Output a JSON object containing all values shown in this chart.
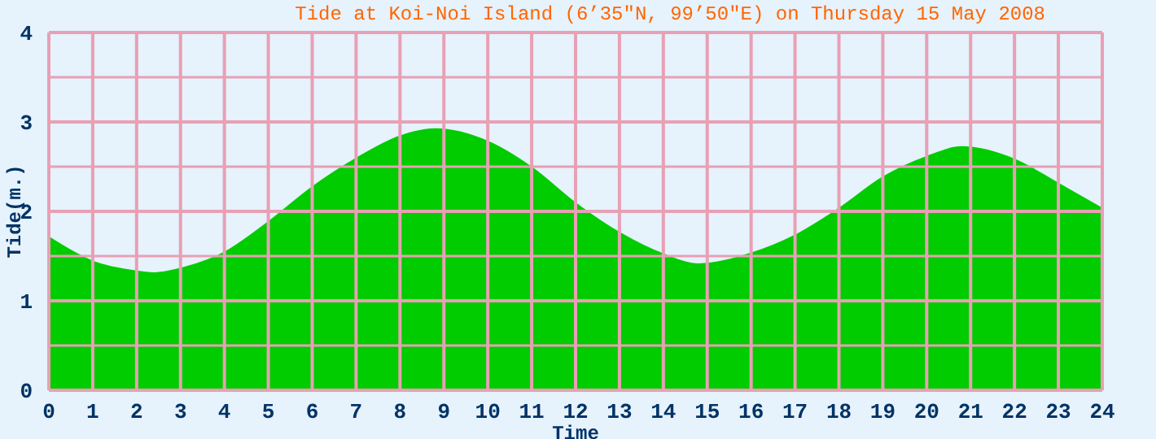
{
  "chart_data": {
    "type": "area",
    "title": "Tide at Koi-Noi Island (6’35\"N, 99’50\"E) on Thursday 15 May 2008",
    "xlabel": "Time",
    "ylabel": "Tide(m.)",
    "x": [
      0,
      1,
      2,
      2.4,
      3,
      4,
      5,
      6,
      7,
      8,
      8.8,
      10,
      11,
      12,
      13,
      14,
      14.8,
      16,
      17,
      18,
      19,
      20,
      20.8,
      22,
      23,
      24
    ],
    "series": [
      {
        "color": "#00cc00",
        "values": [
          1.71,
          1.44,
          1.33,
          1.31,
          1.36,
          1.54,
          1.88,
          2.27,
          2.59,
          2.84,
          2.92,
          2.78,
          2.49,
          2.09,
          1.76,
          1.52,
          1.41,
          1.53,
          1.73,
          2.03,
          2.38,
          2.61,
          2.72,
          2.58,
          2.31,
          2.03
        ]
      }
    ],
    "xlim": [
      0,
      24
    ],
    "xticks": [
      0,
      1,
      2,
      3,
      4,
      5,
      6,
      7,
      8,
      9,
      10,
      11,
      12,
      13,
      14,
      15,
      16,
      17,
      18,
      19,
      20,
      21,
      22,
      23,
      24
    ],
    "ylim": [
      0,
      4
    ],
    "yticks": [
      0,
      {
        "value": 0.5,
        "label": null
      },
      1,
      {
        "value": 1.5,
        "label": null
      },
      2,
      {
        "value": 2.5,
        "label": null
      },
      3,
      {
        "value": 3.5,
        "label": null
      },
      4
    ],
    "grid": true,
    "legend": false
  }
}
